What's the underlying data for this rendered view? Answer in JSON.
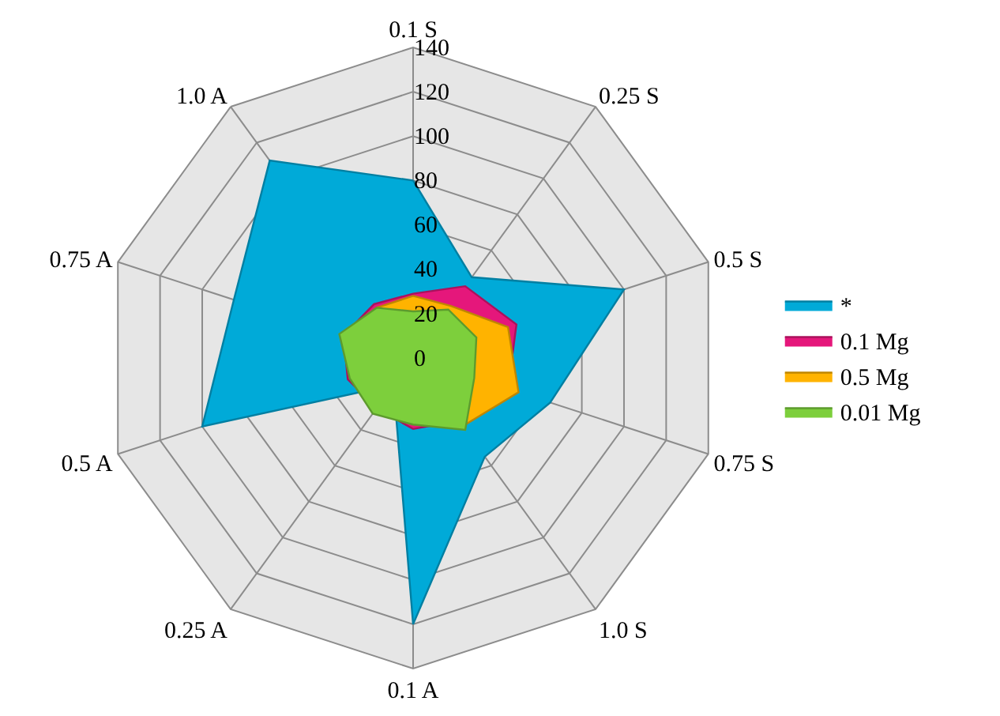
{
  "chart_data": {
    "type": "radar",
    "categories": [
      "0.1 S",
      "0.25 S",
      "0.5 S",
      "0.75 S",
      "1.0 S",
      "0.1 A",
      "0.25 A",
      "0.5 A",
      "0.75 A",
      "1.0 A"
    ],
    "series": [
      {
        "name": "*",
        "color": "#00aad8",
        "values": [
          80,
          45,
          100,
          65,
          55,
          120,
          15,
          100,
          85,
          110
        ]
      },
      {
        "name": "0.1 Mg",
        "color": "#e5177b",
        "values": [
          29,
          40,
          49,
          45,
          35,
          32,
          28,
          31,
          33,
          30
        ]
      },
      {
        "name": "0.5 Mg",
        "color": "#ffb300",
        "values": [
          28,
          29,
          45,
          50,
          38,
          29,
          28,
          29,
          32,
          28
        ]
      },
      {
        "name": "0.01 Mg",
        "color": "#7dcf3c",
        "values": [
          21,
          27,
          30,
          29,
          40,
          30,
          31,
          30,
          35,
          28
        ]
      }
    ],
    "ylim": [
      0,
      140
    ],
    "yticks": [
      0,
      20,
      40,
      60,
      80,
      100,
      120,
      140
    ],
    "grid": true,
    "legend": "right"
  }
}
